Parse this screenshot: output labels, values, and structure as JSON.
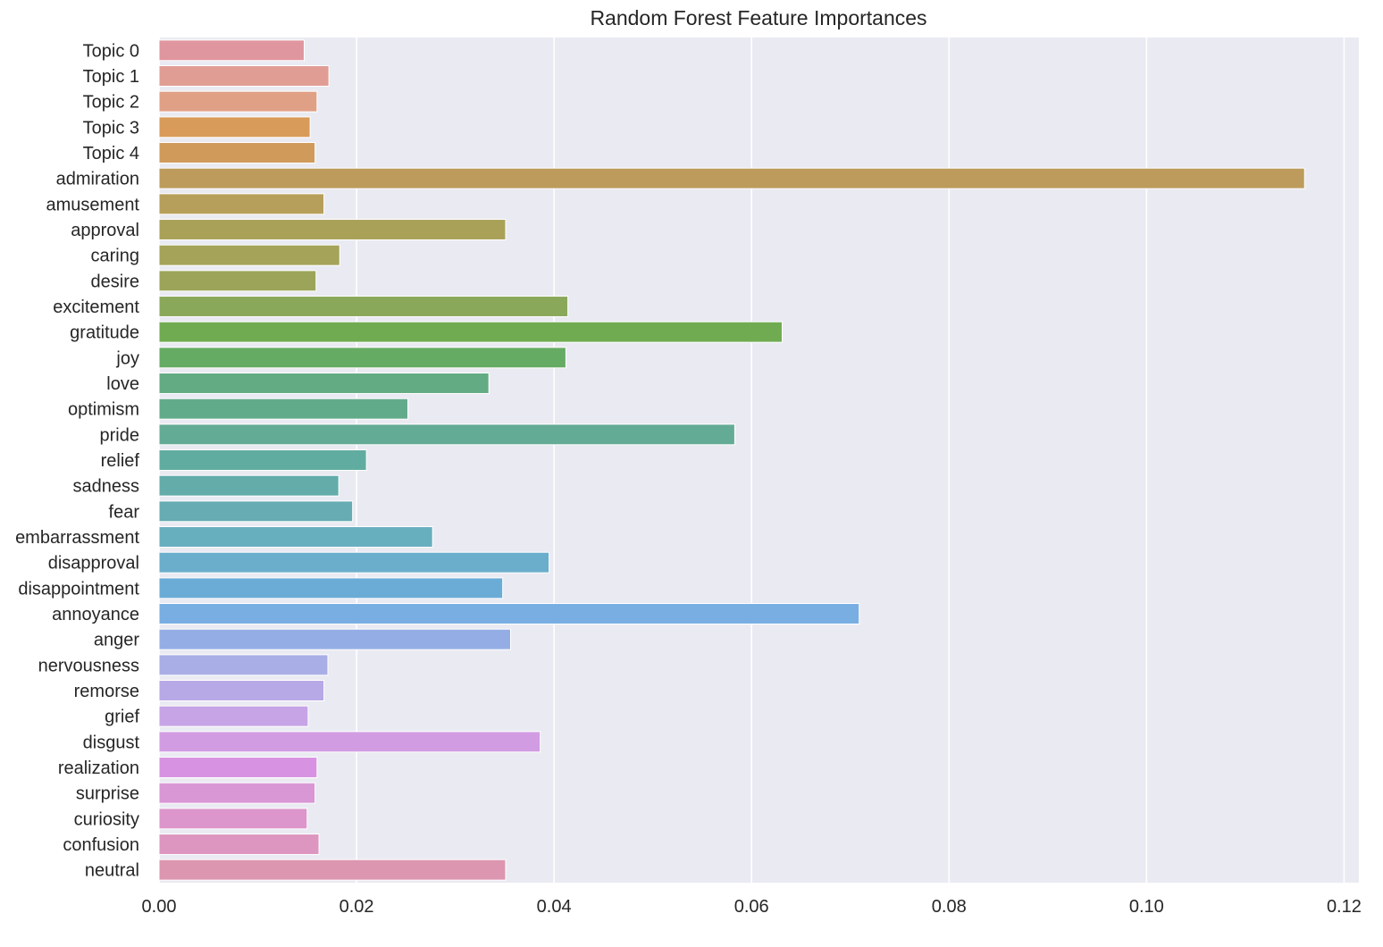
{
  "chart_data": {
    "type": "bar",
    "orientation": "horizontal",
    "title": "Random Forest Feature Importances",
    "xlabel": "",
    "ylabel": "",
    "xlim": [
      0,
      0.1215
    ],
    "grid": true,
    "xticks": [
      "0.00",
      "0.02",
      "0.04",
      "0.06",
      "0.08",
      "0.10",
      "0.12"
    ],
    "xtick_values": [
      0,
      0.02,
      0.04,
      0.06,
      0.08,
      0.1,
      0.12
    ],
    "categories": [
      "Topic 0",
      "Topic 1",
      "Topic 2",
      "Topic 3",
      "Topic 4",
      "admiration",
      "amusement",
      "approval",
      "caring",
      "desire",
      "excitement",
      "gratitude",
      "joy",
      "love",
      "optimism",
      "pride",
      "relief",
      "sadness",
      "fear",
      "embarrassment",
      "disapproval",
      "disappointment",
      "annoyance",
      "anger",
      "nervousness",
      "remorse",
      "grief",
      "disgust",
      "realization",
      "surprise",
      "curiosity",
      "confusion",
      "neutral"
    ],
    "values": [
      0.0147,
      0.0172,
      0.016,
      0.0153,
      0.0158,
      0.116,
      0.0167,
      0.0351,
      0.0183,
      0.0159,
      0.0414,
      0.0631,
      0.0412,
      0.0334,
      0.0252,
      0.0583,
      0.021,
      0.0182,
      0.0196,
      0.0277,
      0.0395,
      0.0348,
      0.0709,
      0.0356,
      0.0171,
      0.0167,
      0.0151,
      0.0386,
      0.016,
      0.0158,
      0.015,
      0.0162,
      0.0351
    ],
    "colors": [
      "#e0969f",
      "#e09d93",
      "#e0a086",
      "#d99b5a",
      "#cf9a5a",
      "#bc9b5c",
      "#b69f5a",
      "#aaa159",
      "#a5a35a",
      "#9ba459",
      "#8aa85a",
      "#70ab52",
      "#66ab63",
      "#63ab82",
      "#61ab8b",
      "#64ab96",
      "#61aca0",
      "#63acaa",
      "#66acb2",
      "#67aebf",
      "#6aaecb",
      "#6bacd7",
      "#78aee1",
      "#94aee5",
      "#a9aee6",
      "#b7a8e6",
      "#c6a4e6",
      "#d29ce3",
      "#d792e1",
      "#d997d5",
      "#dc96cb",
      "#dc96c0",
      "#dc96b0"
    ],
    "background": "#eaeaf2",
    "grid_color": "#ffffff",
    "text_color": "#262626"
  }
}
